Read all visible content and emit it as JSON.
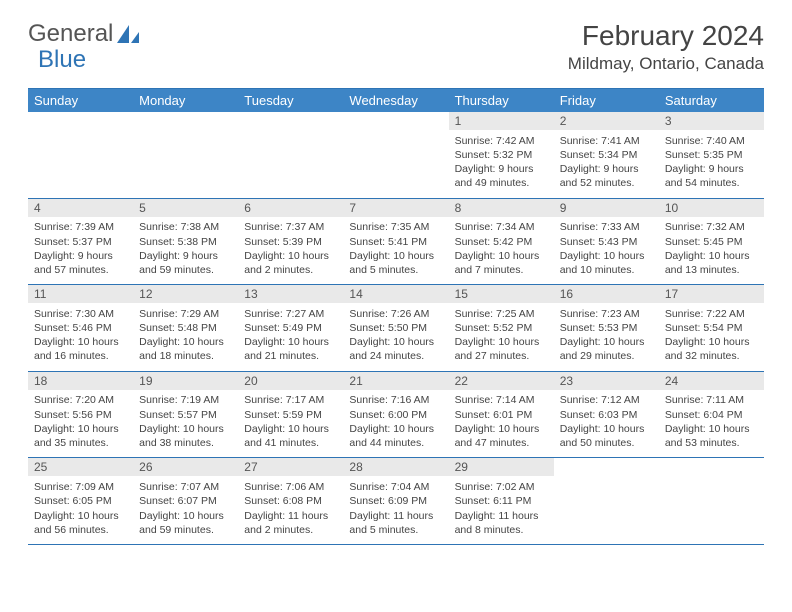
{
  "logo": {
    "part1": "General",
    "part2": "Blue"
  },
  "title": "February 2024",
  "location": "Mildmay, Ontario, Canada",
  "colors": {
    "header_bg": "#3d85c6",
    "header_text": "#ffffff",
    "daynum_bg": "#e9e9e9",
    "border": "#2e74b5",
    "logo_blue": "#2e74b5",
    "text": "#444444"
  },
  "fonts": {
    "title_size": 28,
    "location_size": 17,
    "header_size": 13,
    "daynum_size": 12,
    "detail_size": 10.5
  },
  "daysOfWeek": [
    "Sunday",
    "Monday",
    "Tuesday",
    "Wednesday",
    "Thursday",
    "Friday",
    "Saturday"
  ],
  "weeks": [
    [
      null,
      null,
      null,
      null,
      {
        "n": "1",
        "sunrise": "7:42 AM",
        "sunset": "5:32 PM",
        "daylight": "9 hours and 49 minutes."
      },
      {
        "n": "2",
        "sunrise": "7:41 AM",
        "sunset": "5:34 PM",
        "daylight": "9 hours and 52 minutes."
      },
      {
        "n": "3",
        "sunrise": "7:40 AM",
        "sunset": "5:35 PM",
        "daylight": "9 hours and 54 minutes."
      }
    ],
    [
      {
        "n": "4",
        "sunrise": "7:39 AM",
        "sunset": "5:37 PM",
        "daylight": "9 hours and 57 minutes."
      },
      {
        "n": "5",
        "sunrise": "7:38 AM",
        "sunset": "5:38 PM",
        "daylight": "9 hours and 59 minutes."
      },
      {
        "n": "6",
        "sunrise": "7:37 AM",
        "sunset": "5:39 PM",
        "daylight": "10 hours and 2 minutes."
      },
      {
        "n": "7",
        "sunrise": "7:35 AM",
        "sunset": "5:41 PM",
        "daylight": "10 hours and 5 minutes."
      },
      {
        "n": "8",
        "sunrise": "7:34 AM",
        "sunset": "5:42 PM",
        "daylight": "10 hours and 7 minutes."
      },
      {
        "n": "9",
        "sunrise": "7:33 AM",
        "sunset": "5:43 PM",
        "daylight": "10 hours and 10 minutes."
      },
      {
        "n": "10",
        "sunrise": "7:32 AM",
        "sunset": "5:45 PM",
        "daylight": "10 hours and 13 minutes."
      }
    ],
    [
      {
        "n": "11",
        "sunrise": "7:30 AM",
        "sunset": "5:46 PM",
        "daylight": "10 hours and 16 minutes."
      },
      {
        "n": "12",
        "sunrise": "7:29 AM",
        "sunset": "5:48 PM",
        "daylight": "10 hours and 18 minutes."
      },
      {
        "n": "13",
        "sunrise": "7:27 AM",
        "sunset": "5:49 PM",
        "daylight": "10 hours and 21 minutes."
      },
      {
        "n": "14",
        "sunrise": "7:26 AM",
        "sunset": "5:50 PM",
        "daylight": "10 hours and 24 minutes."
      },
      {
        "n": "15",
        "sunrise": "7:25 AM",
        "sunset": "5:52 PM",
        "daylight": "10 hours and 27 minutes."
      },
      {
        "n": "16",
        "sunrise": "7:23 AM",
        "sunset": "5:53 PM",
        "daylight": "10 hours and 29 minutes."
      },
      {
        "n": "17",
        "sunrise": "7:22 AM",
        "sunset": "5:54 PM",
        "daylight": "10 hours and 32 minutes."
      }
    ],
    [
      {
        "n": "18",
        "sunrise": "7:20 AM",
        "sunset": "5:56 PM",
        "daylight": "10 hours and 35 minutes."
      },
      {
        "n": "19",
        "sunrise": "7:19 AM",
        "sunset": "5:57 PM",
        "daylight": "10 hours and 38 minutes."
      },
      {
        "n": "20",
        "sunrise": "7:17 AM",
        "sunset": "5:59 PM",
        "daylight": "10 hours and 41 minutes."
      },
      {
        "n": "21",
        "sunrise": "7:16 AM",
        "sunset": "6:00 PM",
        "daylight": "10 hours and 44 minutes."
      },
      {
        "n": "22",
        "sunrise": "7:14 AM",
        "sunset": "6:01 PM",
        "daylight": "10 hours and 47 minutes."
      },
      {
        "n": "23",
        "sunrise": "7:12 AM",
        "sunset": "6:03 PM",
        "daylight": "10 hours and 50 minutes."
      },
      {
        "n": "24",
        "sunrise": "7:11 AM",
        "sunset": "6:04 PM",
        "daylight": "10 hours and 53 minutes."
      }
    ],
    [
      {
        "n": "25",
        "sunrise": "7:09 AM",
        "sunset": "6:05 PM",
        "daylight": "10 hours and 56 minutes."
      },
      {
        "n": "26",
        "sunrise": "7:07 AM",
        "sunset": "6:07 PM",
        "daylight": "10 hours and 59 minutes."
      },
      {
        "n": "27",
        "sunrise": "7:06 AM",
        "sunset": "6:08 PM",
        "daylight": "11 hours and 2 minutes."
      },
      {
        "n": "28",
        "sunrise": "7:04 AM",
        "sunset": "6:09 PM",
        "daylight": "11 hours and 5 minutes."
      },
      {
        "n": "29",
        "sunrise": "7:02 AM",
        "sunset": "6:11 PM",
        "daylight": "11 hours and 8 minutes."
      },
      null,
      null
    ]
  ],
  "labels": {
    "sunrise": "Sunrise:",
    "sunset": "Sunset:",
    "daylight": "Daylight:"
  }
}
